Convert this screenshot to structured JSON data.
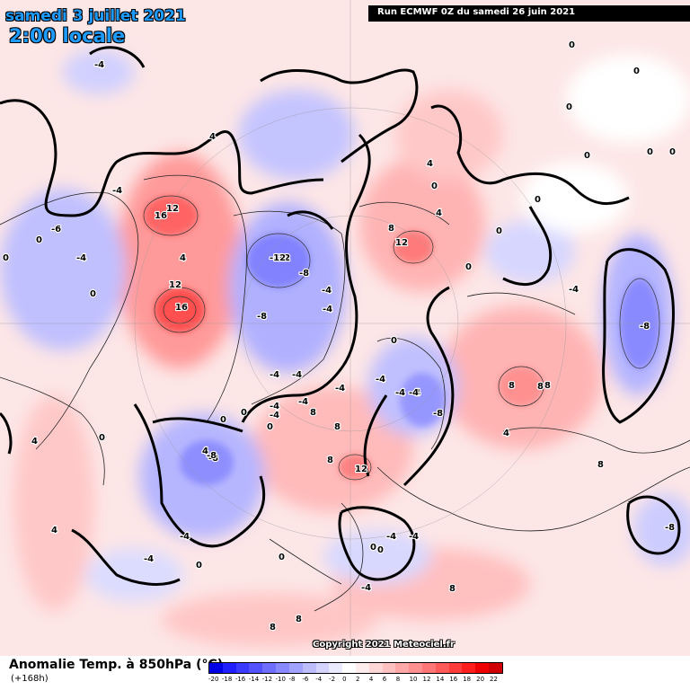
{
  "header": {
    "date": "samedi 3 juillet 2021",
    "time": "2:00 locale",
    "run": "Run ECMWF 0Z du samedi 26 juin 2021"
  },
  "footer": {
    "parameter": "Anomalie Temp. à 850hPa (°C)",
    "lead": "(+168h)",
    "copyright": "Copyright 2021 Meteociel.fr"
  },
  "legend": {
    "colors": [
      "#0000e6",
      "#1f1fff",
      "#3a3aff",
      "#5252ff",
      "#6e6eff",
      "#8888ff",
      "#a2a2ff",
      "#bcbcff",
      "#d4d4ff",
      "#ebebff",
      "#ffffff",
      "#ffecec",
      "#ffd6d6",
      "#ffc0c0",
      "#ffa8a8",
      "#ff9090",
      "#ff7676",
      "#ff5a5a",
      "#ff3c3c",
      "#ff1e1e",
      "#ee0000",
      "#d00000"
    ],
    "ticks": [
      "-20",
      "-18",
      "-16",
      "-14",
      "-12",
      "-10",
      "-8",
      "-6",
      "-4",
      "-2",
      "0",
      "2",
      "4",
      "6",
      "8",
      "10",
      "12",
      "14",
      "16",
      "18",
      "20",
      "22"
    ]
  },
  "map_labels": {
    "neg": [
      "-4",
      "-4",
      "-6",
      "-4",
      "-12",
      "-8",
      "-4",
      "-4",
      "-12",
      "-8",
      "-4",
      "-4",
      "-4",
      "-4",
      "-4",
      "-8",
      "-4",
      "-4",
      "-8",
      "-4",
      "-8",
      "-4",
      "-4",
      "-8",
      "-4",
      "-4",
      "-4",
      "-4",
      "-4",
      "-4",
      "-8"
    ],
    "pos": [
      "12",
      "16",
      "8",
      "4",
      "12",
      "16",
      "4",
      "4",
      "8",
      "8",
      "8",
      "12",
      "8",
      "8",
      "8",
      "12",
      "4",
      "4",
      "8",
      "8",
      "8",
      "4",
      "4",
      "8",
      "4"
    ],
    "zero": [
      "0",
      "0",
      "0",
      "0",
      "0",
      "0",
      "0",
      "0",
      "0",
      "0",
      "0",
      "0",
      "0",
      "0",
      "0",
      "0",
      "0",
      "0",
      "0",
      "0",
      "0",
      "0"
    ]
  }
}
